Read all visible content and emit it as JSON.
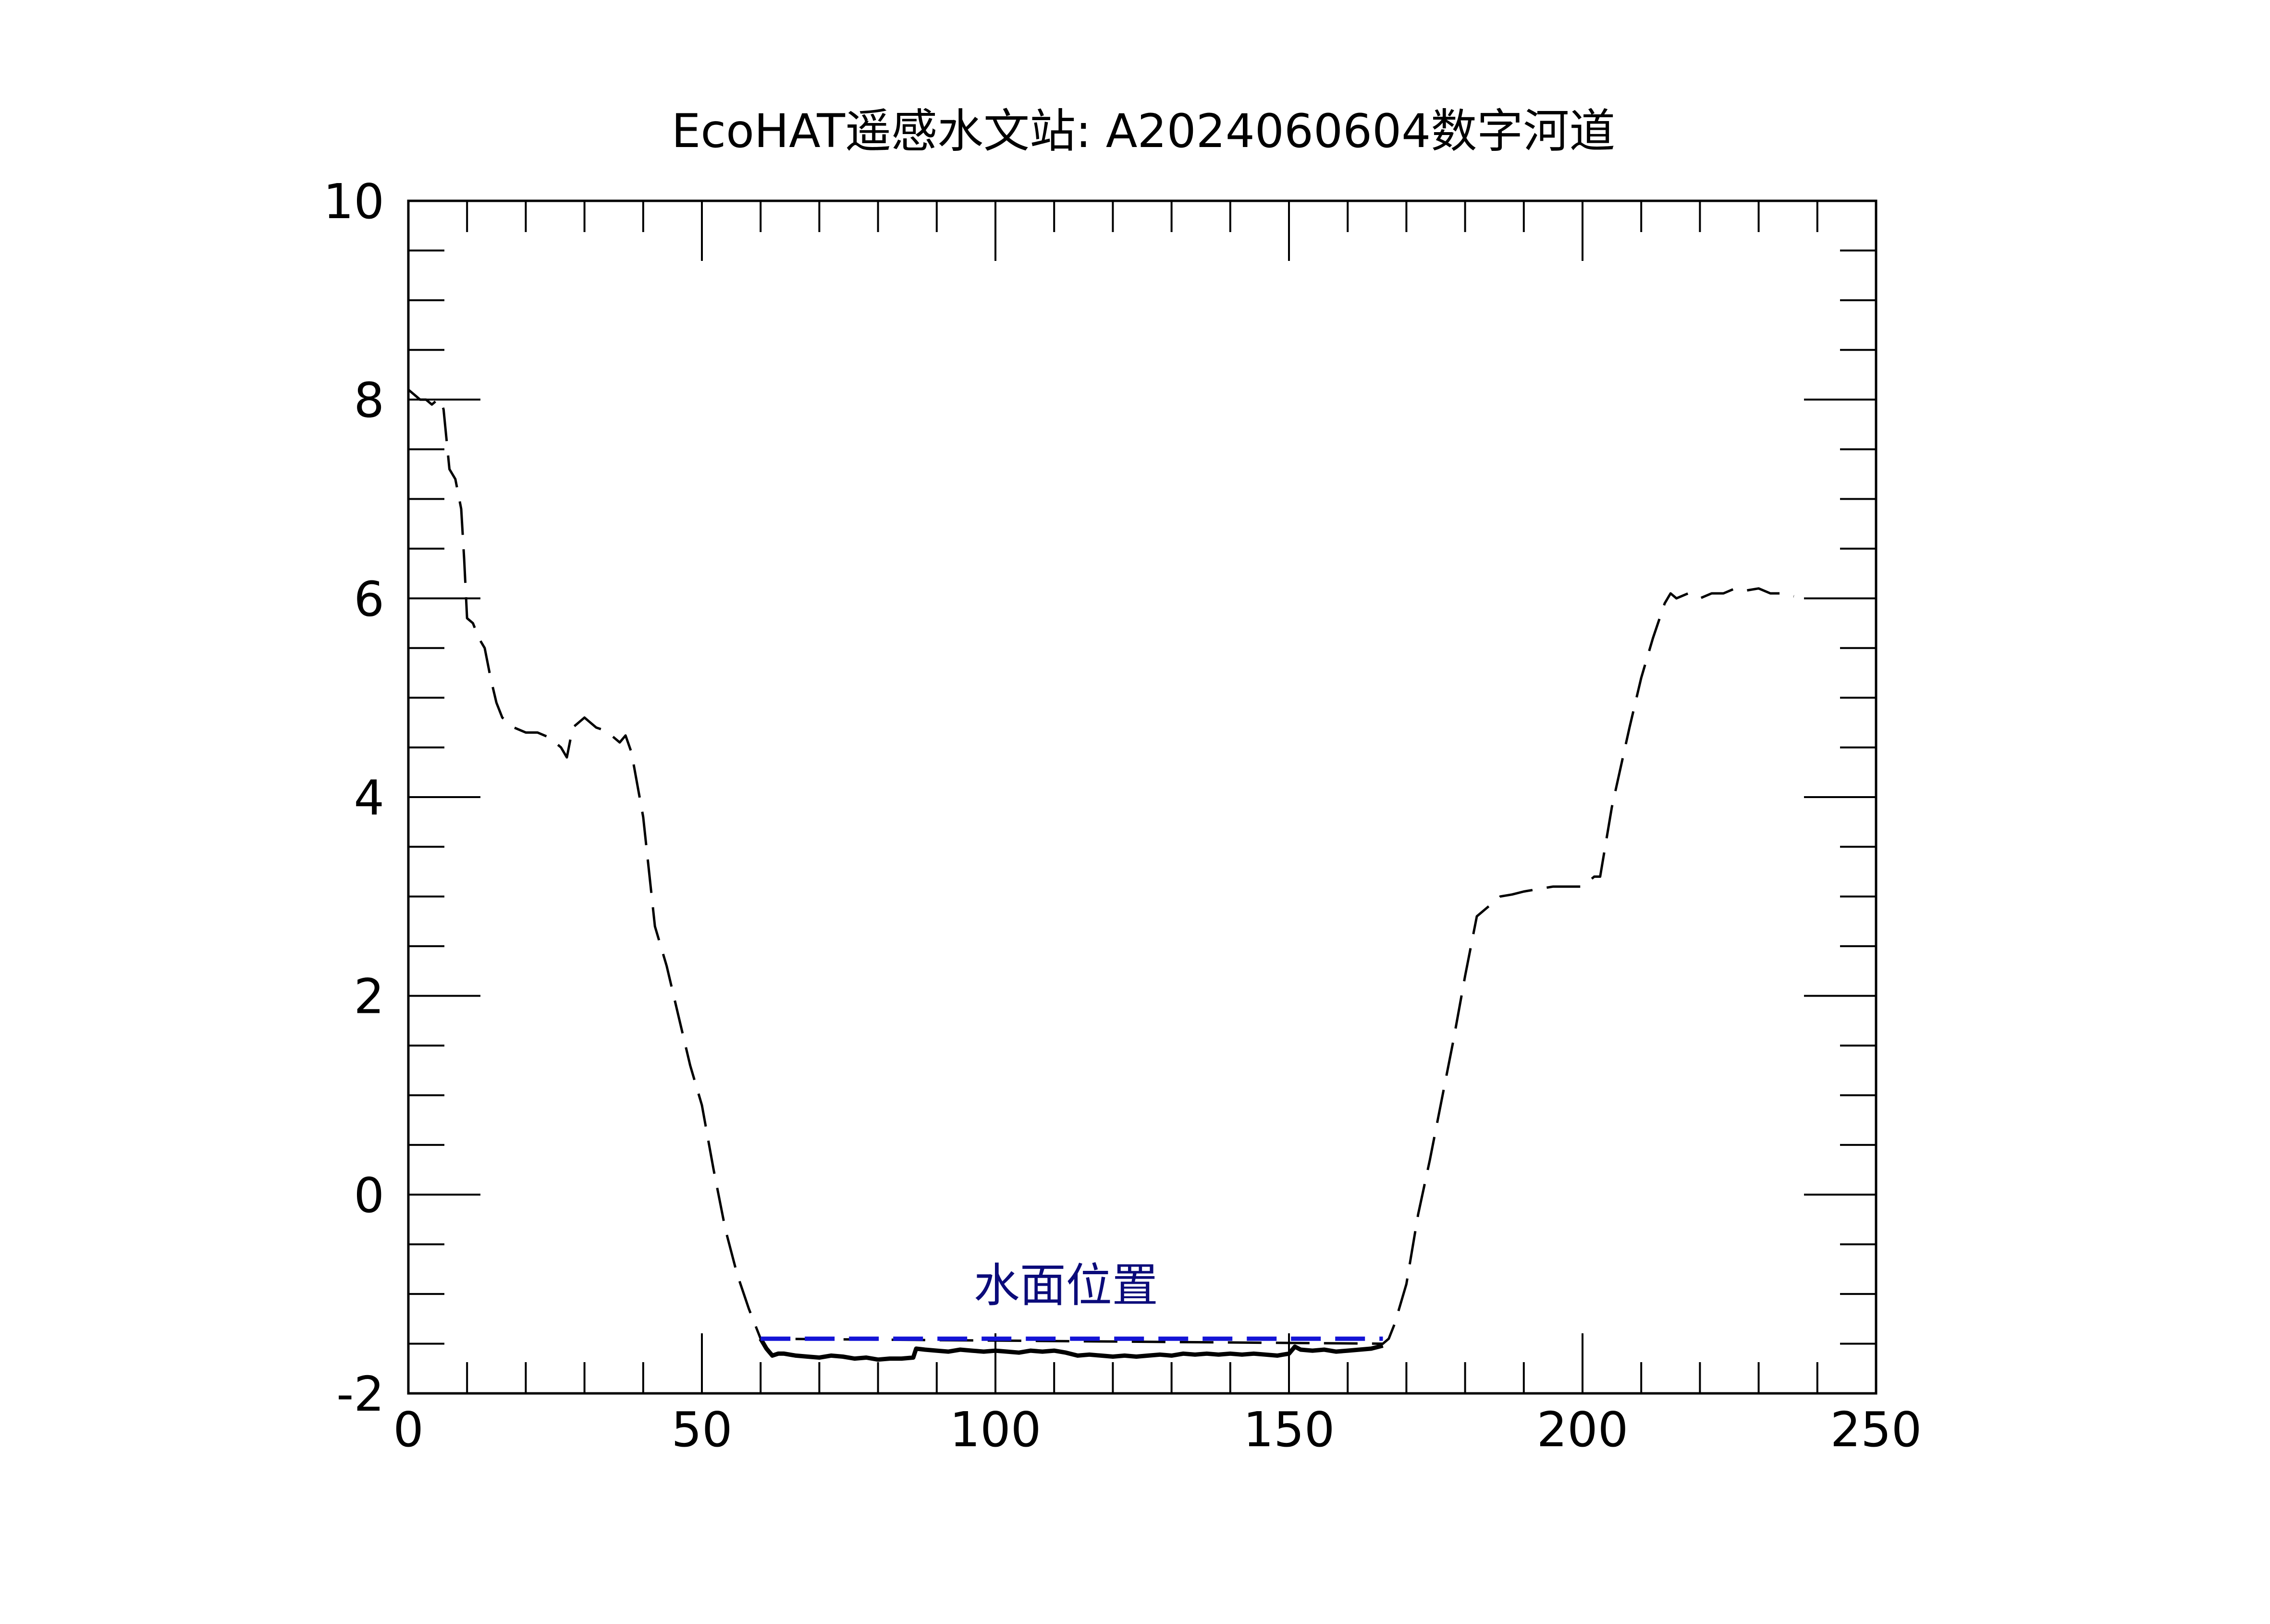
{
  "chart_data": {
    "type": "line",
    "title": "EcoHAT遥感水文站: A2024060604数字河道",
    "xlabel": "",
    "ylabel": "",
    "xlim": [
      0,
      250
    ],
    "ylim": [
      -2,
      10
    ],
    "x_ticks": [
      0,
      50,
      100,
      150,
      200,
      250
    ],
    "x_tick_labels": [
      "0",
      "50",
      "100",
      "150",
      "200",
      "250"
    ],
    "y_ticks": [
      -2,
      0,
      2,
      4,
      6,
      8,
      10
    ],
    "y_tick_labels": [
      "-2",
      "0",
      "2",
      "4",
      "6",
      "8",
      "10"
    ],
    "grid": false,
    "annotations": [
      {
        "text": "水面位置",
        "x": 112,
        "y": -0.9,
        "color": "#0b0b7a"
      }
    ],
    "series": [
      {
        "style": "dashed",
        "color": "#000000",
        "x": [
          0,
          1,
          2,
          3,
          4,
          5,
          5.5,
          6,
          7,
          8,
          8.5,
          9,
          9.5,
          10,
          11,
          12,
          13,
          14,
          15,
          16,
          18,
          20,
          22,
          24,
          25,
          26,
          27,
          28,
          29,
          30,
          31,
          32,
          33,
          34,
          35,
          36,
          37,
          38,
          40,
          42,
          44,
          46,
          48,
          50,
          52,
          54,
          56,
          58,
          59,
          60,
          166,
          167,
          168,
          170,
          172,
          174,
          176,
          178,
          180,
          182,
          184,
          185,
          186,
          188,
          190,
          195,
          200,
          202,
          203,
          205,
          208,
          210,
          212,
          214,
          215,
          216,
          218,
          220,
          222,
          224,
          226,
          228,
          230,
          232,
          234,
          236
        ],
        "y": [
          8.1,
          8.05,
          8.0,
          8.0,
          7.95,
          8.0,
          8.0,
          7.9,
          7.3,
          7.2,
          7.05,
          6.9,
          6.4,
          5.8,
          5.75,
          5.6,
          5.5,
          5.2,
          4.95,
          4.8,
          4.7,
          4.65,
          4.65,
          4.6,
          4.55,
          4.5,
          4.4,
          4.7,
          4.75,
          4.8,
          4.75,
          4.7,
          4.68,
          4.65,
          4.6,
          4.55,
          4.62,
          4.45,
          3.8,
          2.7,
          2.3,
          1.8,
          1.3,
          0.9,
          0.25,
          -0.35,
          -0.8,
          -1.15,
          -1.3,
          -1.45,
          -1.5,
          -1.45,
          -1.3,
          -0.9,
          -0.2,
          0.35,
          0.95,
          1.55,
          2.2,
          2.8,
          2.9,
          2.95,
          3.0,
          3.02,
          3.05,
          3.1,
          3.1,
          3.2,
          3.2,
          3.9,
          4.7,
          5.2,
          5.6,
          5.95,
          6.05,
          6.0,
          6.05,
          6.0,
          6.05,
          6.05,
          6.1,
          6.08,
          6.1,
          6.05,
          6.05,
          6.02
        ]
      },
      {
        "style": "solid",
        "color": "#000000",
        "x": [
          60,
          61,
          62,
          63,
          64,
          66,
          68,
          70,
          72,
          74,
          76,
          78,
          80,
          82,
          84,
          86,
          86.5,
          88,
          90,
          92,
          94,
          96,
          98,
          100,
          102,
          104,
          106,
          108,
          110,
          112,
          114,
          116,
          118,
          120,
          122,
          124,
          126,
          128,
          130,
          132,
          134,
          136,
          138,
          140,
          142,
          144,
          146,
          148,
          150,
          151,
          152,
          154,
          156,
          158,
          160,
          162,
          164,
          166
        ],
        "y": [
          -1.45,
          -1.55,
          -1.62,
          -1.6,
          -1.6,
          -1.62,
          -1.63,
          -1.64,
          -1.62,
          -1.63,
          -1.65,
          -1.64,
          -1.66,
          -1.65,
          -1.65,
          -1.64,
          -1.55,
          -1.56,
          -1.57,
          -1.58,
          -1.56,
          -1.57,
          -1.58,
          -1.57,
          -1.58,
          -1.59,
          -1.57,
          -1.58,
          -1.57,
          -1.59,
          -1.62,
          -1.61,
          -1.62,
          -1.63,
          -1.62,
          -1.63,
          -1.62,
          -1.61,
          -1.62,
          -1.6,
          -1.61,
          -1.6,
          -1.61,
          -1.6,
          -1.61,
          -1.6,
          -1.61,
          -1.62,
          -1.6,
          -1.53,
          -1.56,
          -1.57,
          -1.56,
          -1.58,
          -1.57,
          -1.56,
          -1.55,
          -1.52
        ]
      },
      {
        "style": "dashed",
        "color": "#1414d6",
        "x": [
          60,
          166
        ],
        "y": [
          -1.45,
          -1.45
        ]
      }
    ]
  }
}
